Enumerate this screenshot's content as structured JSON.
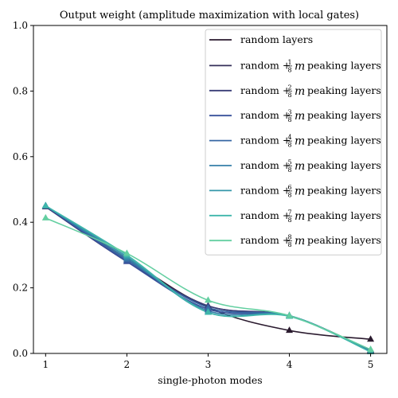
{
  "chart_data": {
    "type": "line",
    "title": "Output weight (amplitude maximization with local gates)",
    "xlabel": "single-photon modes",
    "ylabel": "",
    "xlim": [
      0.85,
      5.2
    ],
    "ylim": [
      0.0,
      1.0
    ],
    "x_ticks": [
      "1",
      "2",
      "3",
      "4",
      "5"
    ],
    "y_ticks": [
      "0.0",
      "0.2",
      "0.4",
      "0.6",
      "0.8",
      "1.0"
    ],
    "x": [
      1,
      2,
      3,
      4,
      5
    ],
    "legend_position": "upper-right",
    "grid": false,
    "legend_frac_denominator": "8",
    "legend_m_symbol": "m",
    "legend_text_prefix": "random +",
    "legend_text_suffix": "peaking layers",
    "series": [
      {
        "name": "random layers",
        "fraction_numerator": "",
        "color": "#2a1a2e",
        "values": [
          0.45,
          0.29,
          0.14,
          0.07,
          0.043
        ]
      },
      {
        "name": "random + 1/8 m peaking layers",
        "fraction_numerator": "1",
        "color": "#35305a",
        "values": [
          0.447,
          0.285,
          0.145,
          0.115,
          0.01
        ]
      },
      {
        "name": "random + 2/8 m peaking layers",
        "fraction_numerator": "2",
        "color": "#383d77",
        "values": [
          0.447,
          0.28,
          0.145,
          0.115,
          0.008
        ]
      },
      {
        "name": "random + 3/8 m peaking layers",
        "fraction_numerator": "3",
        "color": "#38509a",
        "values": [
          0.45,
          0.28,
          0.135,
          0.115,
          0.008
        ]
      },
      {
        "name": "random + 4/8 m peaking layers",
        "fraction_numerator": "4",
        "color": "#3767a4",
        "values": [
          0.45,
          0.285,
          0.14,
          0.115,
          0.007
        ]
      },
      {
        "name": "random + 5/8 m peaking layers",
        "fraction_numerator": "5",
        "color": "#357fa8",
        "values": [
          0.45,
          0.29,
          0.13,
          0.115,
          0.006
        ]
      },
      {
        "name": "random + 6/8 m peaking layers",
        "fraction_numerator": "6",
        "color": "#3497a9",
        "values": [
          0.45,
          0.295,
          0.125,
          0.115,
          0.005
        ]
      },
      {
        "name": "random + 7/8 m peaking layers",
        "fraction_numerator": "7",
        "color": "#3fb6ab",
        "values": [
          0.45,
          0.3,
          0.125,
          0.113,
          0.005
        ]
      },
      {
        "name": "random + 8/8 m peaking layers",
        "fraction_numerator": "8",
        "color": "#64cfa1",
        "values": [
          0.413,
          0.305,
          0.162,
          0.115,
          0.012
        ]
      }
    ]
  }
}
